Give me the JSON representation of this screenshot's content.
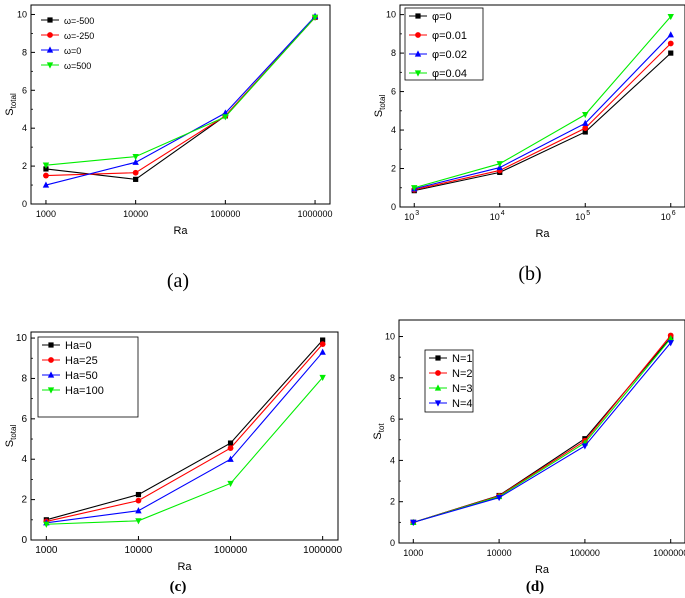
{
  "chart_data": [
    {
      "id": "a",
      "type": "line",
      "caption": "(a)",
      "xlabel": "Ra",
      "ylabel": "S",
      "ylabel_sub": "total",
      "categories": [
        "1000",
        "10000",
        "100000",
        "1000000"
      ],
      "ylim": [
        0,
        10.5
      ],
      "yticks": [
        0,
        2,
        4,
        6,
        8,
        10
      ],
      "legend": "top-left",
      "series": [
        {
          "name": "ω=-500",
          "color": "#000000",
          "marker": "square",
          "values": [
            1.85,
            1.3,
            4.65,
            9.85
          ]
        },
        {
          "name": "ω=-250",
          "color": "#ff0000",
          "marker": "circle",
          "values": [
            1.5,
            1.65,
            4.65,
            9.85
          ]
        },
        {
          "name": "ω=0",
          "color": "#0000ff",
          "marker": "triangle",
          "values": [
            1.0,
            2.2,
            4.8,
            9.9
          ]
        },
        {
          "name": "ω=500",
          "color": "#00ee00",
          "marker": "tri-down",
          "values": [
            2.05,
            2.5,
            4.6,
            9.85
          ]
        }
      ]
    },
    {
      "id": "b",
      "type": "line",
      "caption": "(b)",
      "xlabel": "Ra",
      "ylabel": "S",
      "ylabel_sub": "total",
      "categories": [
        "10",
        "10",
        "10",
        "10"
      ],
      "category_exponents": [
        "3",
        "4",
        "5",
        "6"
      ],
      "ylim": [
        0,
        10.5
      ],
      "yticks": [
        0,
        2,
        4,
        6,
        8,
        10
      ],
      "legend": "top-left",
      "series": [
        {
          "name": "φ=0",
          "color": "#000000",
          "marker": "square",
          "values": [
            0.85,
            1.8,
            3.9,
            8.0
          ]
        },
        {
          "name": "φ=0.01",
          "color": "#ff0000",
          "marker": "circle",
          "values": [
            0.9,
            1.9,
            4.1,
            8.5
          ]
        },
        {
          "name": "φ=0.02",
          "color": "#0000ff",
          "marker": "triangle",
          "values": [
            0.95,
            2.05,
            4.35,
            8.95
          ]
        },
        {
          "name": "φ=0.04",
          "color": "#00ee00",
          "marker": "tri-down",
          "values": [
            1.0,
            2.25,
            4.8,
            9.9
          ]
        }
      ]
    },
    {
      "id": "c",
      "type": "line",
      "caption": "(c)",
      "xlabel": "Ra",
      "ylabel": "S",
      "ylabel_sub": "total",
      "categories": [
        "1000",
        "10000",
        "100000",
        "1000000"
      ],
      "ylim": [
        0,
        10.3
      ],
      "yticks": [
        0,
        2,
        4,
        6,
        8,
        10
      ],
      "legend": "top-left",
      "series": [
        {
          "name": "Ha=0",
          "color": "#000000",
          "marker": "square",
          "values": [
            1.0,
            2.25,
            4.8,
            9.9
          ]
        },
        {
          "name": "Ha=25",
          "color": "#ff0000",
          "marker": "circle",
          "values": [
            0.92,
            1.95,
            4.55,
            9.7
          ]
        },
        {
          "name": "Ha=50",
          "color": "#0000ff",
          "marker": "triangle",
          "values": [
            0.85,
            1.45,
            4.0,
            9.3
          ]
        },
        {
          "name": "Ha=100",
          "color": "#00ee00",
          "marker": "tri-down",
          "values": [
            0.78,
            0.95,
            2.8,
            8.05
          ]
        }
      ]
    },
    {
      "id": "d",
      "type": "line",
      "caption": "(d)",
      "xlabel": "Ra",
      "ylabel": "S",
      "ylabel_sub": "tot",
      "categories": [
        "1000",
        "10000",
        "100000",
        "1000000"
      ],
      "ylim": [
        0,
        10.8
      ],
      "yticks": [
        0,
        2,
        4,
        6,
        8,
        10
      ],
      "legend": "top-left",
      "series": [
        {
          "name": "N=1",
          "color": "#000000",
          "marker": "square",
          "values": [
            1.0,
            2.3,
            5.05,
            9.95
          ]
        },
        {
          "name": "N=2",
          "color": "#ff0000",
          "marker": "circle",
          "values": [
            1.0,
            2.28,
            4.95,
            10.05
          ]
        },
        {
          "name": "N=3",
          "color": "#00ee00",
          "marker": "triangle",
          "values": [
            1.0,
            2.25,
            4.85,
            9.9
          ]
        },
        {
          "name": "N=4",
          "color": "#0000ff",
          "marker": "tri-down",
          "values": [
            1.0,
            2.2,
            4.7,
            9.7
          ]
        }
      ]
    }
  ]
}
